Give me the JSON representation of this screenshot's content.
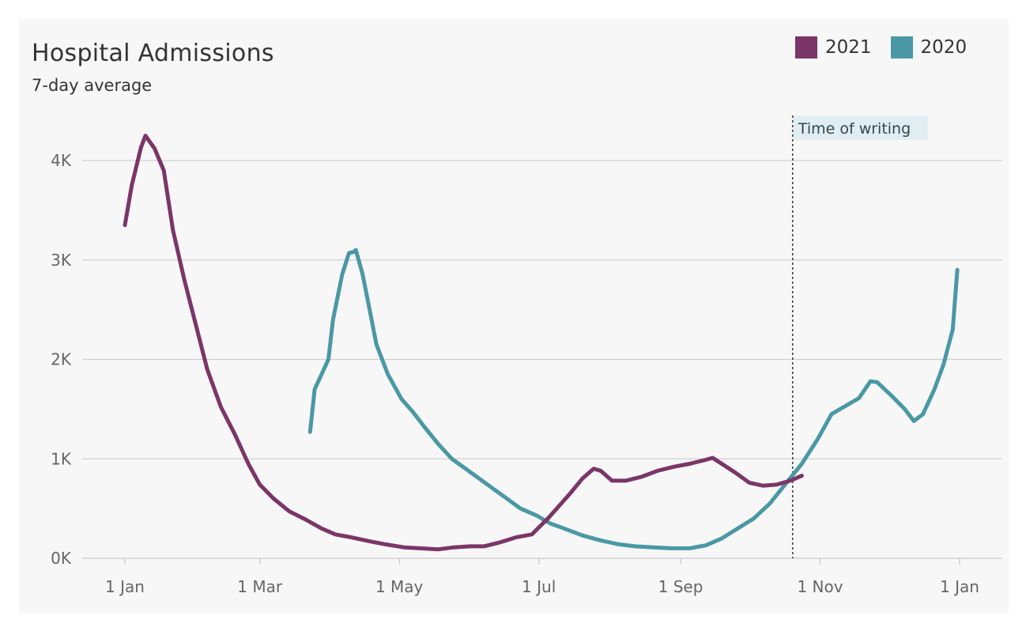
{
  "chart_data": {
    "type": "line",
    "title": "Hospital Admissions",
    "subtitle": "7-day average",
    "xlabel": "",
    "ylabel": "",
    "x_ticks": [
      "1 Jan",
      "1 Mar",
      "1 May",
      "1 Jul",
      "1 Sep",
      "1 Nov",
      "1 Jan"
    ],
    "y_ticks": [
      "0K",
      "1K",
      "2K",
      "3K",
      "4K"
    ],
    "ylim": [
      0,
      4000
    ],
    "xlim": [
      "01-01",
      "12-31"
    ],
    "grid": "horizontal",
    "legend_position": "top-right",
    "annotation": {
      "label": "Time of writing",
      "x": "10-20"
    },
    "series": [
      {
        "name": "2021",
        "color": "#7b3568",
        "points": [
          [
            "01-01",
            3350
          ],
          [
            "01-04",
            3750
          ],
          [
            "01-08",
            4130
          ],
          [
            "01-10",
            4250
          ],
          [
            "01-14",
            4120
          ],
          [
            "01-18",
            3900
          ],
          [
            "01-22",
            3300
          ],
          [
            "01-27",
            2800
          ],
          [
            "02-01",
            2350
          ],
          [
            "02-06",
            1900
          ],
          [
            "02-12",
            1520
          ],
          [
            "02-18",
            1250
          ],
          [
            "02-24",
            950
          ],
          [
            "03-01",
            740
          ],
          [
            "03-07",
            600
          ],
          [
            "03-14",
            470
          ],
          [
            "03-21",
            390
          ],
          [
            "03-28",
            300
          ],
          [
            "04-03",
            240
          ],
          [
            "04-10",
            210
          ],
          [
            "04-18",
            170
          ],
          [
            "04-25",
            140
          ],
          [
            "05-03",
            110
          ],
          [
            "05-10",
            100
          ],
          [
            "05-18",
            90
          ],
          [
            "05-25",
            110
          ],
          [
            "06-01",
            120
          ],
          [
            "06-07",
            120
          ],
          [
            "06-14",
            160
          ],
          [
            "06-21",
            210
          ],
          [
            "06-28",
            240
          ],
          [
            "07-01",
            310
          ],
          [
            "07-05",
            400
          ],
          [
            "07-10",
            530
          ],
          [
            "07-15",
            660
          ],
          [
            "07-20",
            800
          ],
          [
            "07-25",
            900
          ],
          [
            "07-28",
            880
          ],
          [
            "08-02",
            780
          ],
          [
            "08-08",
            780
          ],
          [
            "08-15",
            820
          ],
          [
            "08-22",
            880
          ],
          [
            "08-29",
            920
          ],
          [
            "09-05",
            950
          ],
          [
            "09-12",
            990
          ],
          [
            "09-15",
            1010
          ],
          [
            "09-19",
            950
          ],
          [
            "09-25",
            860
          ],
          [
            "10-01",
            760
          ],
          [
            "10-07",
            730
          ],
          [
            "10-13",
            740
          ],
          [
            "10-19",
            780
          ],
          [
            "10-24",
            830
          ]
        ]
      },
      {
        "name": "2020",
        "color": "#4a98a5",
        "points": [
          [
            "03-23",
            1270
          ],
          [
            "03-25",
            1700
          ],
          [
            "03-28",
            1850
          ],
          [
            "03-31",
            2000
          ],
          [
            "04-02",
            2400
          ],
          [
            "04-06",
            2850
          ],
          [
            "04-09",
            3070
          ],
          [
            "04-11",
            3080
          ],
          [
            "04-12",
            3100
          ],
          [
            "04-15",
            2850
          ],
          [
            "04-18",
            2500
          ],
          [
            "04-21",
            2150
          ],
          [
            "04-26",
            1850
          ],
          [
            "05-02",
            1600
          ],
          [
            "05-07",
            1470
          ],
          [
            "05-12",
            1320
          ],
          [
            "05-18",
            1150
          ],
          [
            "05-24",
            1000
          ],
          [
            "05-30",
            900
          ],
          [
            "06-05",
            800
          ],
          [
            "06-11",
            700
          ],
          [
            "06-17",
            600
          ],
          [
            "06-23",
            500
          ],
          [
            "06-30",
            430
          ],
          [
            "07-06",
            350
          ],
          [
            "07-12",
            300
          ],
          [
            "07-20",
            230
          ],
          [
            "07-28",
            180
          ],
          [
            "08-05",
            140
          ],
          [
            "08-12",
            120
          ],
          [
            "08-20",
            110
          ],
          [
            "08-28",
            100
          ],
          [
            "09-05",
            100
          ],
          [
            "09-12",
            130
          ],
          [
            "09-19",
            200
          ],
          [
            "09-26",
            300
          ],
          [
            "10-03",
            400
          ],
          [
            "10-10",
            550
          ],
          [
            "10-17",
            750
          ],
          [
            "10-24",
            950
          ],
          [
            "10-31",
            1200
          ],
          [
            "11-06",
            1450
          ],
          [
            "11-12",
            1530
          ],
          [
            "11-18",
            1610
          ],
          [
            "11-23",
            1780
          ],
          [
            "11-26",
            1770
          ],
          [
            "12-02",
            1640
          ],
          [
            "12-08",
            1500
          ],
          [
            "12-12",
            1380
          ],
          [
            "12-16",
            1450
          ],
          [
            "12-21",
            1700
          ],
          [
            "12-25",
            1950
          ],
          [
            "12-29",
            2300
          ],
          [
            "12-31",
            2900
          ]
        ]
      }
    ]
  }
}
